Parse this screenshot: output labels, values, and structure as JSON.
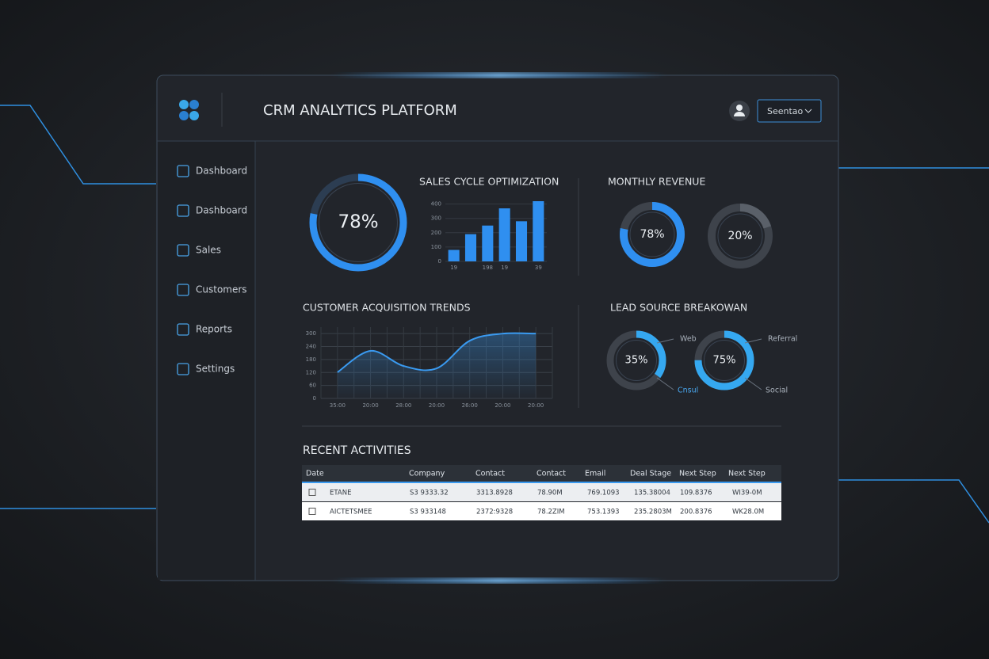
{
  "header": {
    "title": "CRM ANALYTICS PLATFORM",
    "user_menu": "Seentao"
  },
  "sidebar": {
    "items": [
      "Dashboard",
      "Dashboard",
      "Sales",
      "Customers",
      "Reports",
      "Settings"
    ]
  },
  "gauge": {
    "value": 78,
    "value_label": "78%",
    "color": "#2f8ff0"
  },
  "sales_cycle": {
    "title": "SALES CYCLE OPTIMIZATION",
    "type": "bar",
    "categories": [
      "19",
      null,
      "198",
      "19",
      null,
      "39"
    ],
    "values": [
      80,
      190,
      250,
      370,
      280,
      420
    ],
    "color": "#2f8ff0",
    "ylim": [
      0,
      420
    ],
    "yticks": [
      0,
      100,
      200,
      300,
      400
    ]
  },
  "monthly_revenue": {
    "title": "MONTHLY REVENUE",
    "type": "donut",
    "donuts": [
      {
        "value": 78,
        "value_label": "78%",
        "color": "#2f8ff0"
      },
      {
        "value": 20,
        "value_label": "20%",
        "color": "#5a6069"
      }
    ]
  },
  "acquisition": {
    "title": "CUSTOMER ACQUISITION TRENDS",
    "type": "line",
    "categories": [
      "35:00",
      "20:00",
      "28:00",
      "20:00",
      "26:00",
      "20:00",
      "20:00"
    ],
    "values": [
      121,
      220,
      150,
      139,
      267,
      300,
      300
    ],
    "color": "#3a9af0",
    "ylim": [
      0,
      330
    ],
    "yticks": [
      0,
      60,
      120,
      180,
      240,
      300
    ]
  },
  "lead_source": {
    "title": "LEAD SOURCE BREAKOWAN",
    "type": "donut",
    "donuts": [
      {
        "value": 35,
        "value_label": "35%",
        "color": "#35a8f0",
        "labels": [
          "Web",
          "Cnsul"
        ]
      },
      {
        "value": 75,
        "value_label": "75%",
        "color": "#35a8f0",
        "labels": [
          "Referral",
          "Social"
        ]
      }
    ]
  },
  "activities": {
    "title": "RECENT ACTIVITIES",
    "columns": [
      "Date",
      "Company",
      "Contact",
      "Contact",
      "Email",
      "Deal Stage",
      "Next Step",
      "Next Step"
    ],
    "rows": [
      [
        "ETANE",
        "S3 9333.32",
        "3313.8928",
        "78.90M",
        "769.1093",
        "135.38004",
        "109.8376",
        "WI39-0M"
      ],
      [
        "AICTETSMEE",
        "S3 933148",
        "2372:9328",
        "78.2ZIM",
        "753.1393",
        "235.2803M",
        "200.8376",
        "WK28.0M"
      ]
    ]
  }
}
